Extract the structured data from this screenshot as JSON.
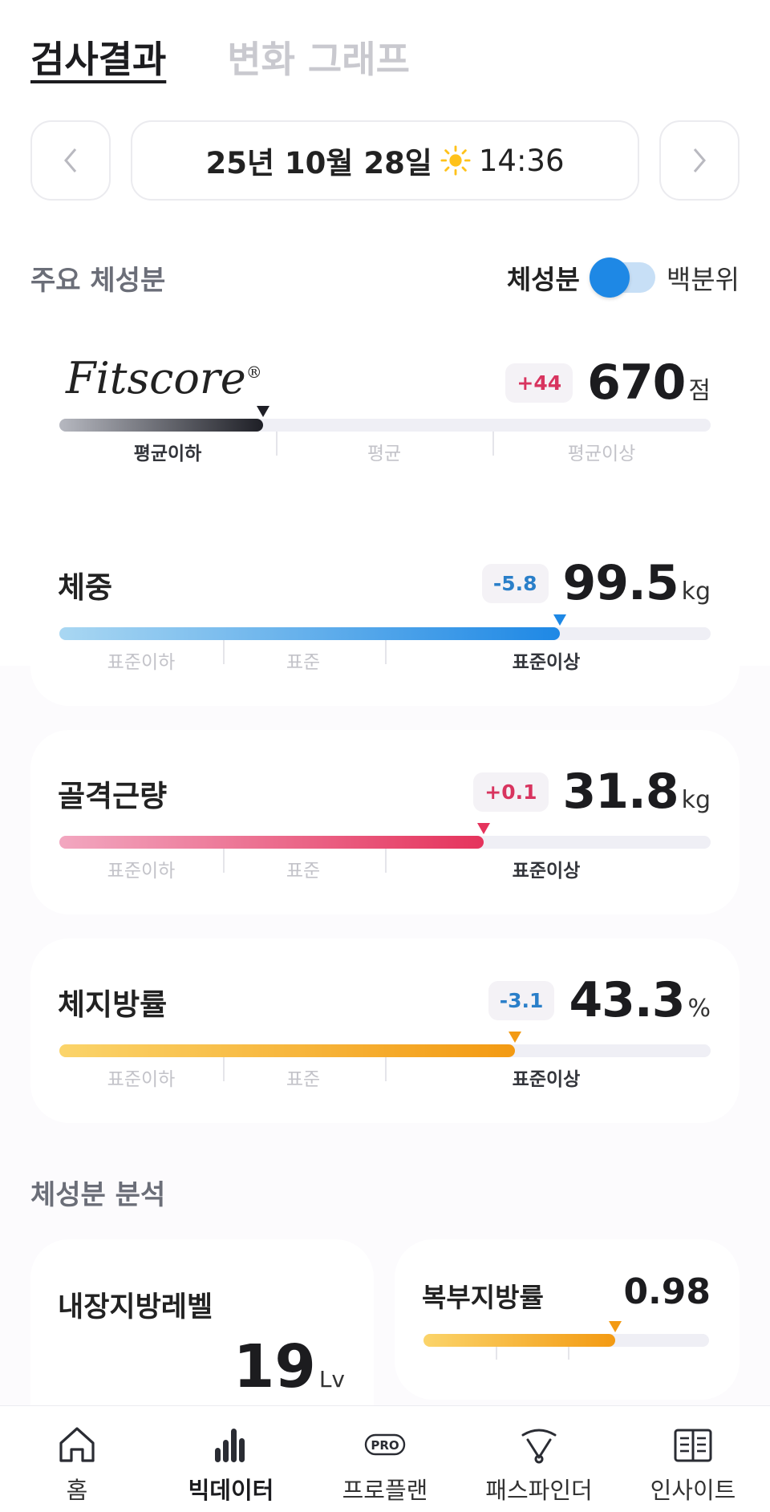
{
  "tabs": [
    {
      "label": "검사결과",
      "active": true
    },
    {
      "label": "변화 그래프",
      "active": false
    }
  ],
  "date_row": {
    "date": "25년 10월 28일",
    "time": "14:36",
    "time_icon": "sun-icon"
  },
  "main_section": {
    "title": "주요 체성분",
    "toggle": {
      "label_left": "체성분",
      "label_right": "백분위",
      "state": "left"
    }
  },
  "fitscore": {
    "logo": "Fitscore",
    "registered": "®",
    "delta": "+44",
    "value": "670",
    "unit": "점",
    "fraction": 0.313,
    "bands": [
      "평균이하",
      "평균",
      "평균이상"
    ],
    "active_band": 0,
    "colors": {
      "fill_start": "#b6b8c0",
      "fill_end": "#1e1f26",
      "marker": "#1e1f26"
    }
  },
  "metrics": [
    {
      "name": "체중",
      "delta": "-5.8",
      "delta_sign": "neg",
      "value": "99.5",
      "unit": "kg",
      "fraction": 0.768,
      "bands": [
        "표준이하",
        "표준",
        "표준이상"
      ],
      "active_band": 2,
      "colors": {
        "fill_start": "#a9d7f2",
        "fill_end": "#1e88e5",
        "marker": "#1e88e5"
      }
    },
    {
      "name": "골격근량",
      "delta": "+0.1",
      "delta_sign": "pos",
      "value": "31.8",
      "unit": "kg",
      "fraction": 0.652,
      "bands": [
        "표준이하",
        "표준",
        "표준이상"
      ],
      "active_band": 2,
      "colors": {
        "fill_start": "#f2a7c0",
        "fill_end": "#e5335c",
        "marker": "#e5335c"
      }
    },
    {
      "name": "체지방률",
      "delta": "-3.1",
      "delta_sign": "neg",
      "value": "43.3",
      "unit": "%",
      "fraction": 0.7,
      "bands": [
        "표준이하",
        "표준",
        "표준이상"
      ],
      "active_band": 2,
      "colors": {
        "fill_start": "#fbd46a",
        "fill_end": "#f39a12",
        "marker": "#f39a12"
      }
    }
  ],
  "analysis": {
    "title": "체성분 분석",
    "visceral": {
      "name": "내장지방레벨",
      "value": "19",
      "unit": "Lv"
    },
    "abdominal": {
      "name": "복부지방률",
      "value": "0.98",
      "fraction": 0.67,
      "colors": {
        "fill_start": "#fbd46a",
        "fill_end": "#f39a12",
        "marker": "#f39a12"
      }
    }
  },
  "bottom_nav": [
    {
      "label": "홈",
      "icon": "home-icon",
      "active": false
    },
    {
      "label": "빅데이터",
      "icon": "bar-chart-icon",
      "active": true
    },
    {
      "label": "프로플랜",
      "icon": "pro-icon",
      "active": false,
      "badge": "PRO"
    },
    {
      "label": "패스파인더",
      "icon": "pathfinder-icon",
      "active": false
    },
    {
      "label": "인사이트",
      "icon": "book-icon",
      "active": false
    }
  ]
}
